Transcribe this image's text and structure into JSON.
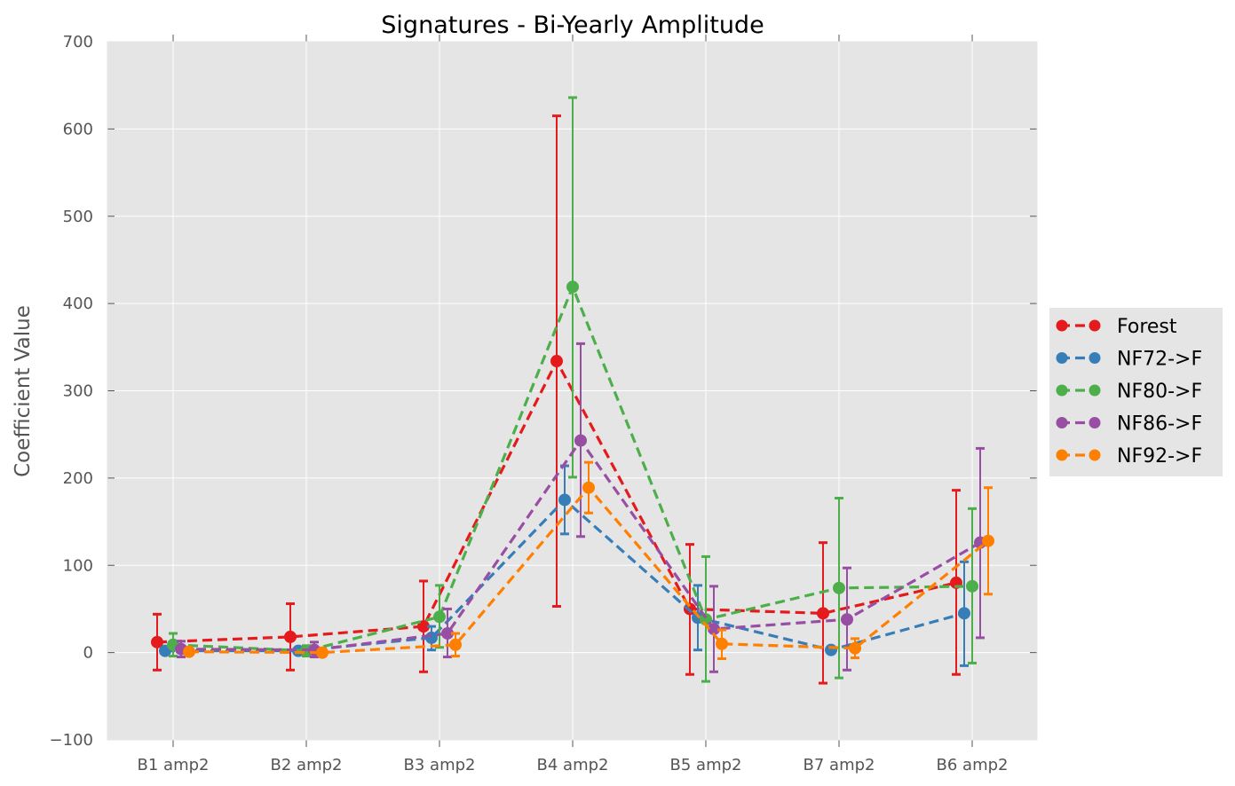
{
  "chart_data": {
    "type": "line",
    "title": "Signatures - Bi-Yearly Amplitude",
    "xlabel": "",
    "ylabel": "Coefficient Value",
    "categories": [
      "B1 amp2",
      "B2 amp2",
      "B3 amp2",
      "B4 amp2",
      "B5 amp2",
      "B7 amp2",
      "B6 amp2"
    ],
    "ylim": [
      -100,
      700
    ],
    "yticks": [
      -100,
      0,
      100,
      200,
      300,
      400,
      500,
      600,
      700
    ],
    "ytick_labels": [
      "−100",
      "0",
      "100",
      "200",
      "300",
      "400",
      "500",
      "600",
      "700"
    ],
    "grid": true,
    "legend_position": "center-right outside",
    "line_style": "dashed",
    "error_bars": true,
    "series": [
      {
        "name": "Forest",
        "color": "#e41a1c",
        "values": [
          12,
          18,
          30,
          334,
          50,
          45,
          80
        ],
        "error_low": [
          -20,
          -20,
          -22,
          53,
          -25,
          -35,
          -25
        ],
        "error_high": [
          44,
          56,
          82,
          615,
          124,
          126,
          186
        ]
      },
      {
        "name": "NF72->F",
        "color": "#377eb8",
        "values": [
          2,
          2,
          17,
          175,
          40,
          3,
          45
        ],
        "error_low": [
          2,
          2,
          3,
          136,
          3,
          3,
          -15
        ],
        "error_high": [
          2,
          2,
          30,
          214,
          77,
          3,
          104
        ]
      },
      {
        "name": "NF80->F",
        "color": "#4daf4a",
        "values": [
          9,
          2,
          41,
          419,
          38,
          74,
          76
        ],
        "error_low": [
          -4,
          -4,
          6,
          201,
          -33,
          -29,
          -12
        ],
        "error_high": [
          22,
          8,
          77,
          636,
          110,
          177,
          165
        ]
      },
      {
        "name": "NF86->F",
        "color": "#984ea3",
        "values": [
          4,
          3,
          22,
          243,
          27,
          38,
          126
        ],
        "error_low": [
          -5,
          -5,
          -5,
          133,
          -22,
          -20,
          17
        ],
        "error_high": [
          13,
          12,
          50,
          354,
          76,
          97,
          234
        ]
      },
      {
        "name": "NF92->F",
        "color": "#ff7f00",
        "values": [
          1,
          0,
          9,
          189,
          10,
          5,
          128
        ],
        "error_low": [
          1,
          -1,
          -4,
          160,
          -7,
          -6,
          67
        ],
        "error_high": [
          1,
          1,
          22,
          218,
          26,
          16,
          189
        ]
      }
    ]
  }
}
